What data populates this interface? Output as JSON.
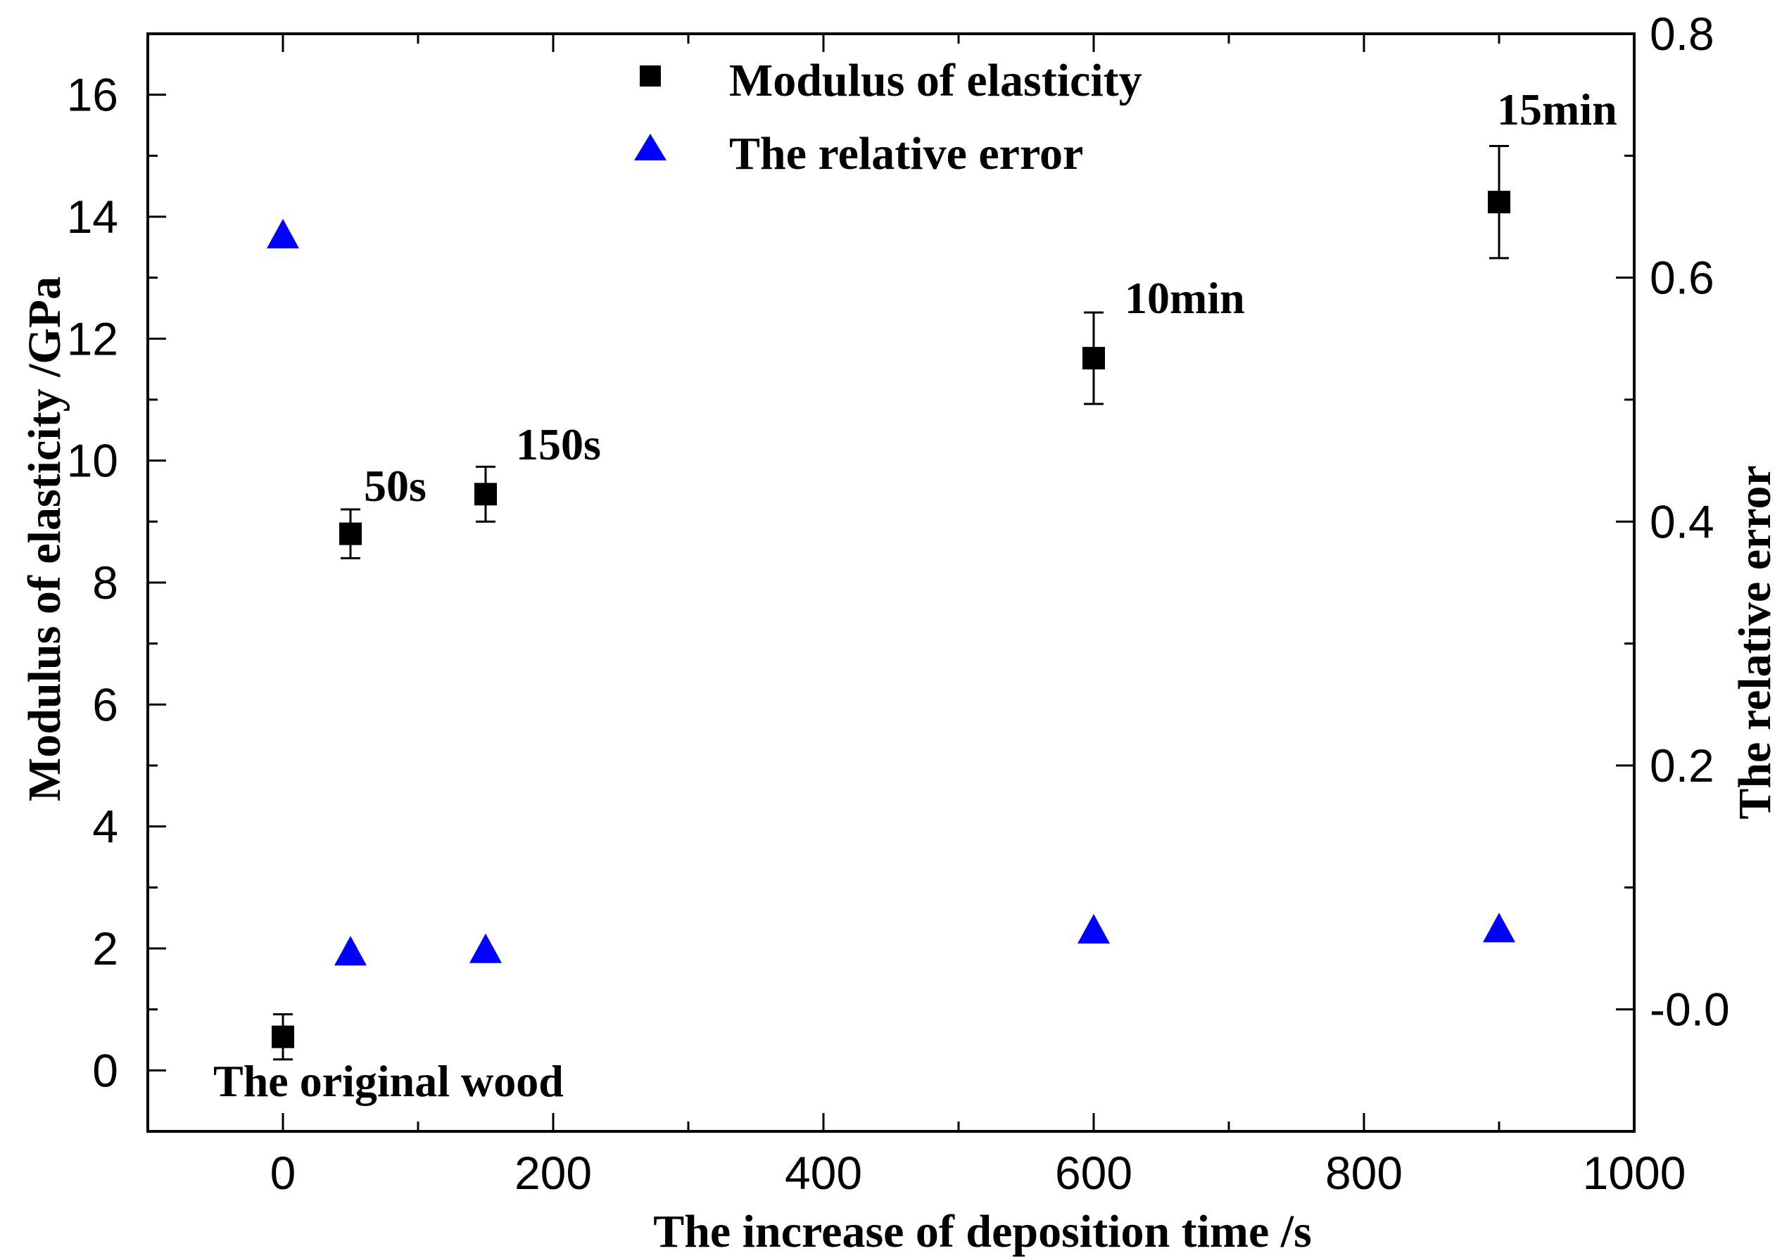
{
  "chart_data": {
    "type": "scatter",
    "title": "",
    "xlabel": "The increase of deposition time /s",
    "ylabel": "Modulus of elasticity /GPa",
    "y2label": "The relative error",
    "xlim": [
      -100,
      1000
    ],
    "ylim": [
      -1,
      17
    ],
    "y2lim": [
      -0.1,
      0.8
    ],
    "x_ticks": [
      "0",
      "200",
      "400",
      "600",
      "800",
      "1000"
    ],
    "x_tick_values": [
      0,
      200,
      400,
      600,
      800,
      1000
    ],
    "y_ticks": [
      "0",
      "2",
      "4",
      "6",
      "8",
      "10",
      "12",
      "14",
      "16"
    ],
    "y_tick_values": [
      0,
      2,
      4,
      6,
      8,
      10,
      12,
      14,
      16
    ],
    "y2_ticks": [
      "-0.0",
      "0.2",
      "0.4",
      "0.6",
      "0.8"
    ],
    "y2_tick_values": [
      0.0,
      0.2,
      0.4,
      0.6,
      0.8
    ],
    "grid": false,
    "legend_position": "top-center",
    "legend": [
      "Modulus of elasticity",
      "The relative error"
    ],
    "series": [
      {
        "name": "Modulus of elasticity",
        "axis": "left",
        "marker": "square",
        "color": "#000000",
        "x": [
          0,
          50,
          150,
          600,
          900
        ],
        "values": [
          0.55,
          8.8,
          9.45,
          11.68,
          14.24
        ],
        "error": [
          0.37,
          0.4,
          0.45,
          0.75,
          0.92
        ]
      },
      {
        "name": "The relative error",
        "axis": "right",
        "marker": "triangle",
        "color": "#0000ff",
        "x": [
          0,
          50,
          150,
          600,
          900
        ],
        "values": [
          0.635,
          0.047,
          0.049,
          0.065,
          0.066
        ]
      }
    ],
    "annotations": [
      {
        "text": "The original wood",
        "x": 0,
        "y": 0.55
      },
      {
        "text": "50s",
        "x": 50,
        "y": 8.8
      },
      {
        "text": "150s",
        "x": 150,
        "y": 9.45
      },
      {
        "text": "10min",
        "x": 600,
        "y": 11.68
      },
      {
        "text": "15min",
        "x": 900,
        "y": 14.24
      }
    ]
  }
}
